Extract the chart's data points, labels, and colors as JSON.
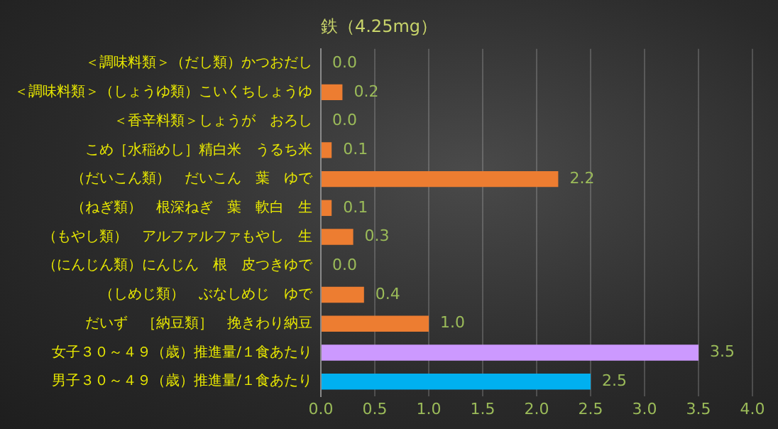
{
  "chart_data": {
    "type": "bar",
    "orientation": "horizontal",
    "title": "鉄（4.25mg）",
    "categories": [
      "＜調味料類＞（だし類）かつおだし",
      "＜調味料類＞（しょうゆ類）こいくちしょうゆ",
      "＜香辛料類＞しょうが　おろし",
      "こめ［水稲めし］精白米　うるち米",
      "（だいこん類）　だいこん　葉　ゆで",
      "（ねぎ類）　根深ねぎ　葉　軟白　生",
      "（もやし類）　アルファルファもやし　生",
      "（にんじん類）にんじん　根　皮つきゆで",
      "（しめじ類）　ぶなしめじ　ゆで",
      "だいず　［納豆類］　挽きわり納豆",
      "女子３０～４９（歳）推進量/１食あたり",
      "男子３０～４９（歳）推進量/１食あたり"
    ],
    "values": [
      0.0,
      0.2,
      0.0,
      0.1,
      2.2,
      0.1,
      0.3,
      0.0,
      0.4,
      1.0,
      3.5,
      2.5
    ],
    "value_labels": [
      "0.0",
      "0.2",
      "0.0",
      "0.1",
      "2.2",
      "0.1",
      "0.3",
      "0.0",
      "0.4",
      "1.0",
      "3.5",
      "2.5"
    ],
    "colors": [
      "#ed7d31",
      "#ed7d31",
      "#ed7d31",
      "#ed7d31",
      "#ed7d31",
      "#ed7d31",
      "#ed7d31",
      "#ed7d31",
      "#ed7d31",
      "#ed7d31",
      "#cc99ff",
      "#00b0f0"
    ],
    "xlim": [
      0,
      4.0
    ],
    "xticks": [
      {
        "value": 0,
        "label": "0.0"
      },
      {
        "value": 0.5,
        "label": "0.5"
      },
      {
        "value": 1,
        "label": "1.0"
      },
      {
        "value": 1.5,
        "label": "1.5"
      },
      {
        "value": 2,
        "label": "2.0"
      },
      {
        "value": 2.5,
        "label": "2.5"
      },
      {
        "value": 3,
        "label": "3.0"
      },
      {
        "value": 3.5,
        "label": "3.5"
      },
      {
        "value": 4,
        "label": "4.0"
      }
    ],
    "grid": "x",
    "legend": false
  }
}
